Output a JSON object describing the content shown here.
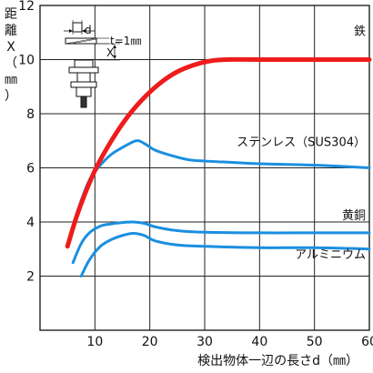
{
  "chart_data": {
    "type": "line",
    "title": "",
    "xlabel": "検出物体一辺の長さd（㎜）",
    "ylabel_chars": [
      "距",
      "離",
      "X",
      "（",
      "㎜",
      "）"
    ],
    "xlim": [
      0,
      60
    ],
    "ylim": [
      0,
      12
    ],
    "xticks": [
      10,
      20,
      30,
      40,
      50,
      60
    ],
    "yticks": [
      2,
      4,
      6,
      8,
      10,
      12
    ],
    "grid": true,
    "inset": {
      "dim_d": "d",
      "dim_x": "X",
      "thickness": "t=1㎜"
    },
    "series": [
      {
        "name": "鉄",
        "color": "#ee1c1c",
        "width": 5,
        "x": [
          5,
          7,
          10,
          13,
          16,
          19,
          22,
          25,
          28,
          31,
          34,
          40,
          50,
          60
        ],
        "y": [
          3.1,
          4.4,
          5.9,
          7.0,
          7.9,
          8.6,
          9.15,
          9.55,
          9.8,
          9.95,
          10.0,
          10.0,
          10.0,
          10.0
        ]
      },
      {
        "name": "ステンレス（SUS304）",
        "color": "#1a8fe0",
        "width": 3,
        "x": [
          5,
          7,
          9,
          11,
          13,
          15,
          17.5,
          19,
          21,
          24,
          27,
          30,
          35,
          40,
          50,
          60
        ],
        "y": [
          3.1,
          4.5,
          5.55,
          6.1,
          6.5,
          6.75,
          7.0,
          6.9,
          6.65,
          6.45,
          6.3,
          6.25,
          6.2,
          6.15,
          6.1,
          6.0
        ]
      },
      {
        "name": "黄銅",
        "color": "#1a8fe0",
        "width": 3,
        "x": [
          6,
          7.5,
          9,
          11,
          13,
          15,
          17,
          19,
          21,
          25,
          30,
          40,
          50,
          60
        ],
        "y": [
          2.5,
          3.2,
          3.6,
          3.85,
          3.93,
          3.98,
          4.0,
          3.95,
          3.82,
          3.68,
          3.62,
          3.6,
          3.6,
          3.6
        ]
      },
      {
        "name": "アルミニウム",
        "color": "#1a8fe0",
        "width": 3,
        "x": [
          7.5,
          9,
          11,
          13,
          15,
          17,
          19,
          21,
          25,
          30,
          40,
          50,
          60
        ],
        "y": [
          2.0,
          2.6,
          3.1,
          3.35,
          3.5,
          3.58,
          3.5,
          3.3,
          3.15,
          3.1,
          3.05,
          3.05,
          3.0
        ]
      }
    ],
    "label_positions_data": [
      {
        "series": "鉄",
        "x": 60,
        "y": 10.9
      },
      {
        "series": "ステンレス（SUS304）",
        "x": 60,
        "y": 6.8
      },
      {
        "series": "黄銅",
        "x": 60,
        "y": 4.1
      },
      {
        "series": "アルミニウム",
        "x": 60,
        "y": 2.65
      }
    ]
  }
}
